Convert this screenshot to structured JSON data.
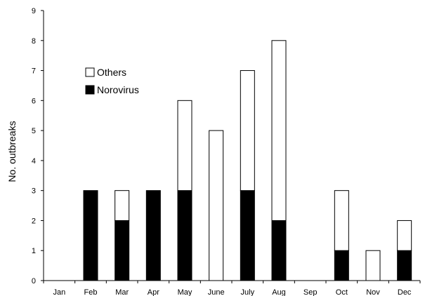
{
  "chart_data": {
    "type": "bar",
    "stacked": true,
    "title": "",
    "xlabel": "",
    "ylabel": "No. outbreaks",
    "ylim": [
      0,
      9
    ],
    "yticks": [
      0,
      1,
      2,
      3,
      4,
      5,
      6,
      7,
      8,
      9
    ],
    "grid": false,
    "legend_position": "top-left",
    "categories": [
      "Jan",
      "Feb",
      "Mar",
      "Apr",
      "May",
      "June",
      "July",
      "Aug",
      "Sep",
      "Oct",
      "Nov",
      "Dec"
    ],
    "series": [
      {
        "name": "Norovirus",
        "color": "#000000",
        "values": [
          0,
          3,
          2,
          3,
          3,
          0,
          3,
          2,
          0,
          1,
          0,
          1
        ]
      },
      {
        "name": "Others",
        "color": "#ffffff",
        "values": [
          0,
          0,
          1,
          0,
          3,
          5,
          4,
          6,
          0,
          2,
          1,
          1
        ]
      }
    ],
    "legend_order": [
      "Others",
      "Norovirus"
    ]
  }
}
